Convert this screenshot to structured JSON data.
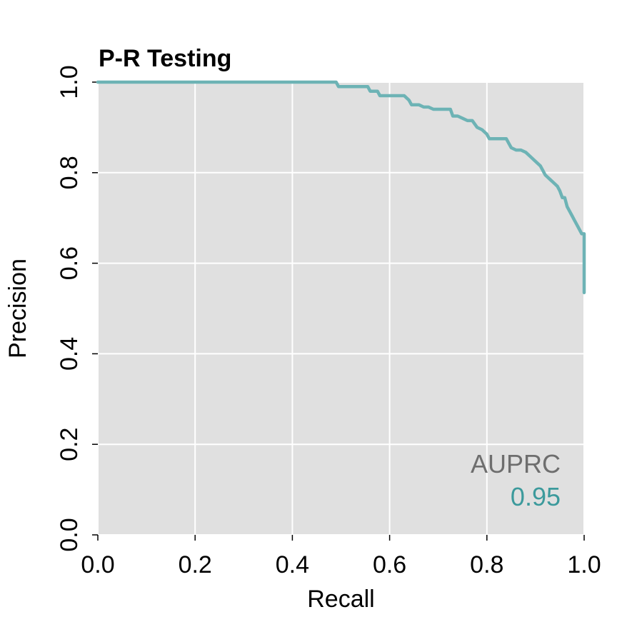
{
  "chart_data": {
    "type": "line",
    "title": "P-R Testing",
    "xlabel": "Recall",
    "ylabel": "Precision",
    "xlim": [
      0,
      1
    ],
    "ylim": [
      0,
      1
    ],
    "x_ticks": [
      "0.0",
      "0.2",
      "0.4",
      "0.6",
      "0.8",
      "1.0"
    ],
    "y_ticks": [
      "0.0",
      "0.2",
      "0.4",
      "0.6",
      "0.8",
      "1.0"
    ],
    "grid": true,
    "background_color": "#e0e0e0",
    "line_color": "#6db3b5",
    "annotation": {
      "label": "AUPRC",
      "value": "0.95",
      "position": "bottom-right"
    },
    "series": [
      {
        "x": [
          0.0,
          0.49,
          0.495,
          0.555,
          0.56,
          0.575,
          0.58,
          0.63,
          0.64,
          0.645,
          0.66,
          0.67,
          0.68,
          0.69,
          0.7,
          0.725,
          0.73,
          0.74,
          0.75,
          0.76,
          0.77,
          0.78,
          0.79,
          0.8,
          0.805,
          0.81,
          0.82,
          0.84,
          0.845,
          0.85,
          0.86,
          0.87,
          0.88,
          0.89,
          0.9,
          0.91,
          0.915,
          0.92,
          0.93,
          0.94,
          0.945,
          0.95,
          0.955,
          0.96,
          0.965,
          0.97,
          0.975,
          0.98,
          0.985,
          0.99,
          0.995,
          1.0,
          1.0
        ],
        "y": [
          1.0,
          1.0,
          0.99,
          0.99,
          0.98,
          0.98,
          0.97,
          0.97,
          0.96,
          0.95,
          0.95,
          0.945,
          0.945,
          0.94,
          0.94,
          0.94,
          0.925,
          0.925,
          0.92,
          0.915,
          0.915,
          0.9,
          0.895,
          0.885,
          0.875,
          0.875,
          0.875,
          0.875,
          0.865,
          0.855,
          0.85,
          0.85,
          0.845,
          0.835,
          0.825,
          0.815,
          0.805,
          0.795,
          0.785,
          0.775,
          0.77,
          0.76,
          0.745,
          0.745,
          0.725,
          0.715,
          0.705,
          0.695,
          0.685,
          0.675,
          0.665,
          0.665,
          0.535
        ]
      }
    ]
  }
}
